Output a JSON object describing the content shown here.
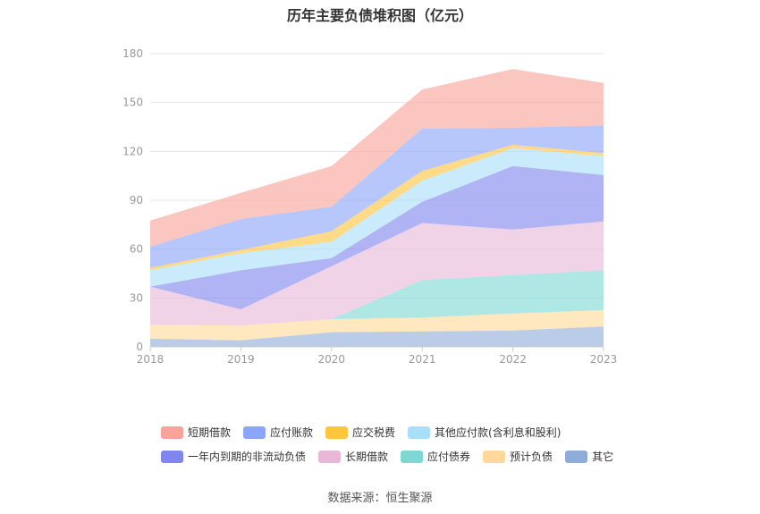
{
  "title": "历年主要负债堆积图（亿元）",
  "source": "数据来源：恒生聚源",
  "chart_data": {
    "type": "area",
    "stacked": true,
    "categories": [
      "2018",
      "2019",
      "2020",
      "2021",
      "2022",
      "2023"
    ],
    "y_ticks": [
      "0",
      "30",
      "60",
      "90",
      "120",
      "150",
      "180"
    ],
    "ylim": [
      0,
      180
    ],
    "grid": true,
    "legend_position": "bottom",
    "series": [
      {
        "name": "其它",
        "color": "#8facd9",
        "values": [
          5,
          4,
          9,
          9.5,
          10,
          12.5
        ]
      },
      {
        "name": "预计负债",
        "color": "#ffd89a",
        "values": [
          8.5,
          9,
          8,
          8.5,
          10.5,
          10
        ]
      },
      {
        "name": "应付债券",
        "color": "#7dd8d3",
        "values": [
          0,
          0,
          0,
          23,
          23.5,
          24.5
        ]
      },
      {
        "name": "长期借款",
        "color": "#e9b8d9",
        "values": [
          23.5,
          10,
          32.5,
          35,
          28,
          30
        ]
      },
      {
        "name": "一年内到期的非流动负债",
        "color": "#7f86ee",
        "values": [
          0,
          24,
          5,
          13,
          39,
          28.5
        ]
      },
      {
        "name": "其他应付款(含利息和股利)",
        "color": "#aadff9",
        "values": [
          10,
          10.5,
          10,
          13,
          11,
          11.5
        ]
      },
      {
        "name": "应交税费",
        "color": "#ffc53d",
        "values": [
          1.5,
          2,
          6.5,
          6,
          2,
          2
        ]
      },
      {
        "name": "应付账款",
        "color": "#8aa5fa",
        "values": [
          13,
          19,
          15,
          26,
          10.5,
          17
        ]
      },
      {
        "name": "短期借款",
        "color": "#f9a39a",
        "values": [
          16,
          16,
          25,
          24,
          36,
          26
        ]
      }
    ]
  },
  "legend_rows": [
    [
      "短期借款",
      "应付账款",
      "应交税费",
      "其他应付款(含利息和股利)"
    ],
    [
      "一年内到期的非流动负债",
      "长期借款",
      "应付债券",
      "预计负债",
      "其它"
    ]
  ]
}
